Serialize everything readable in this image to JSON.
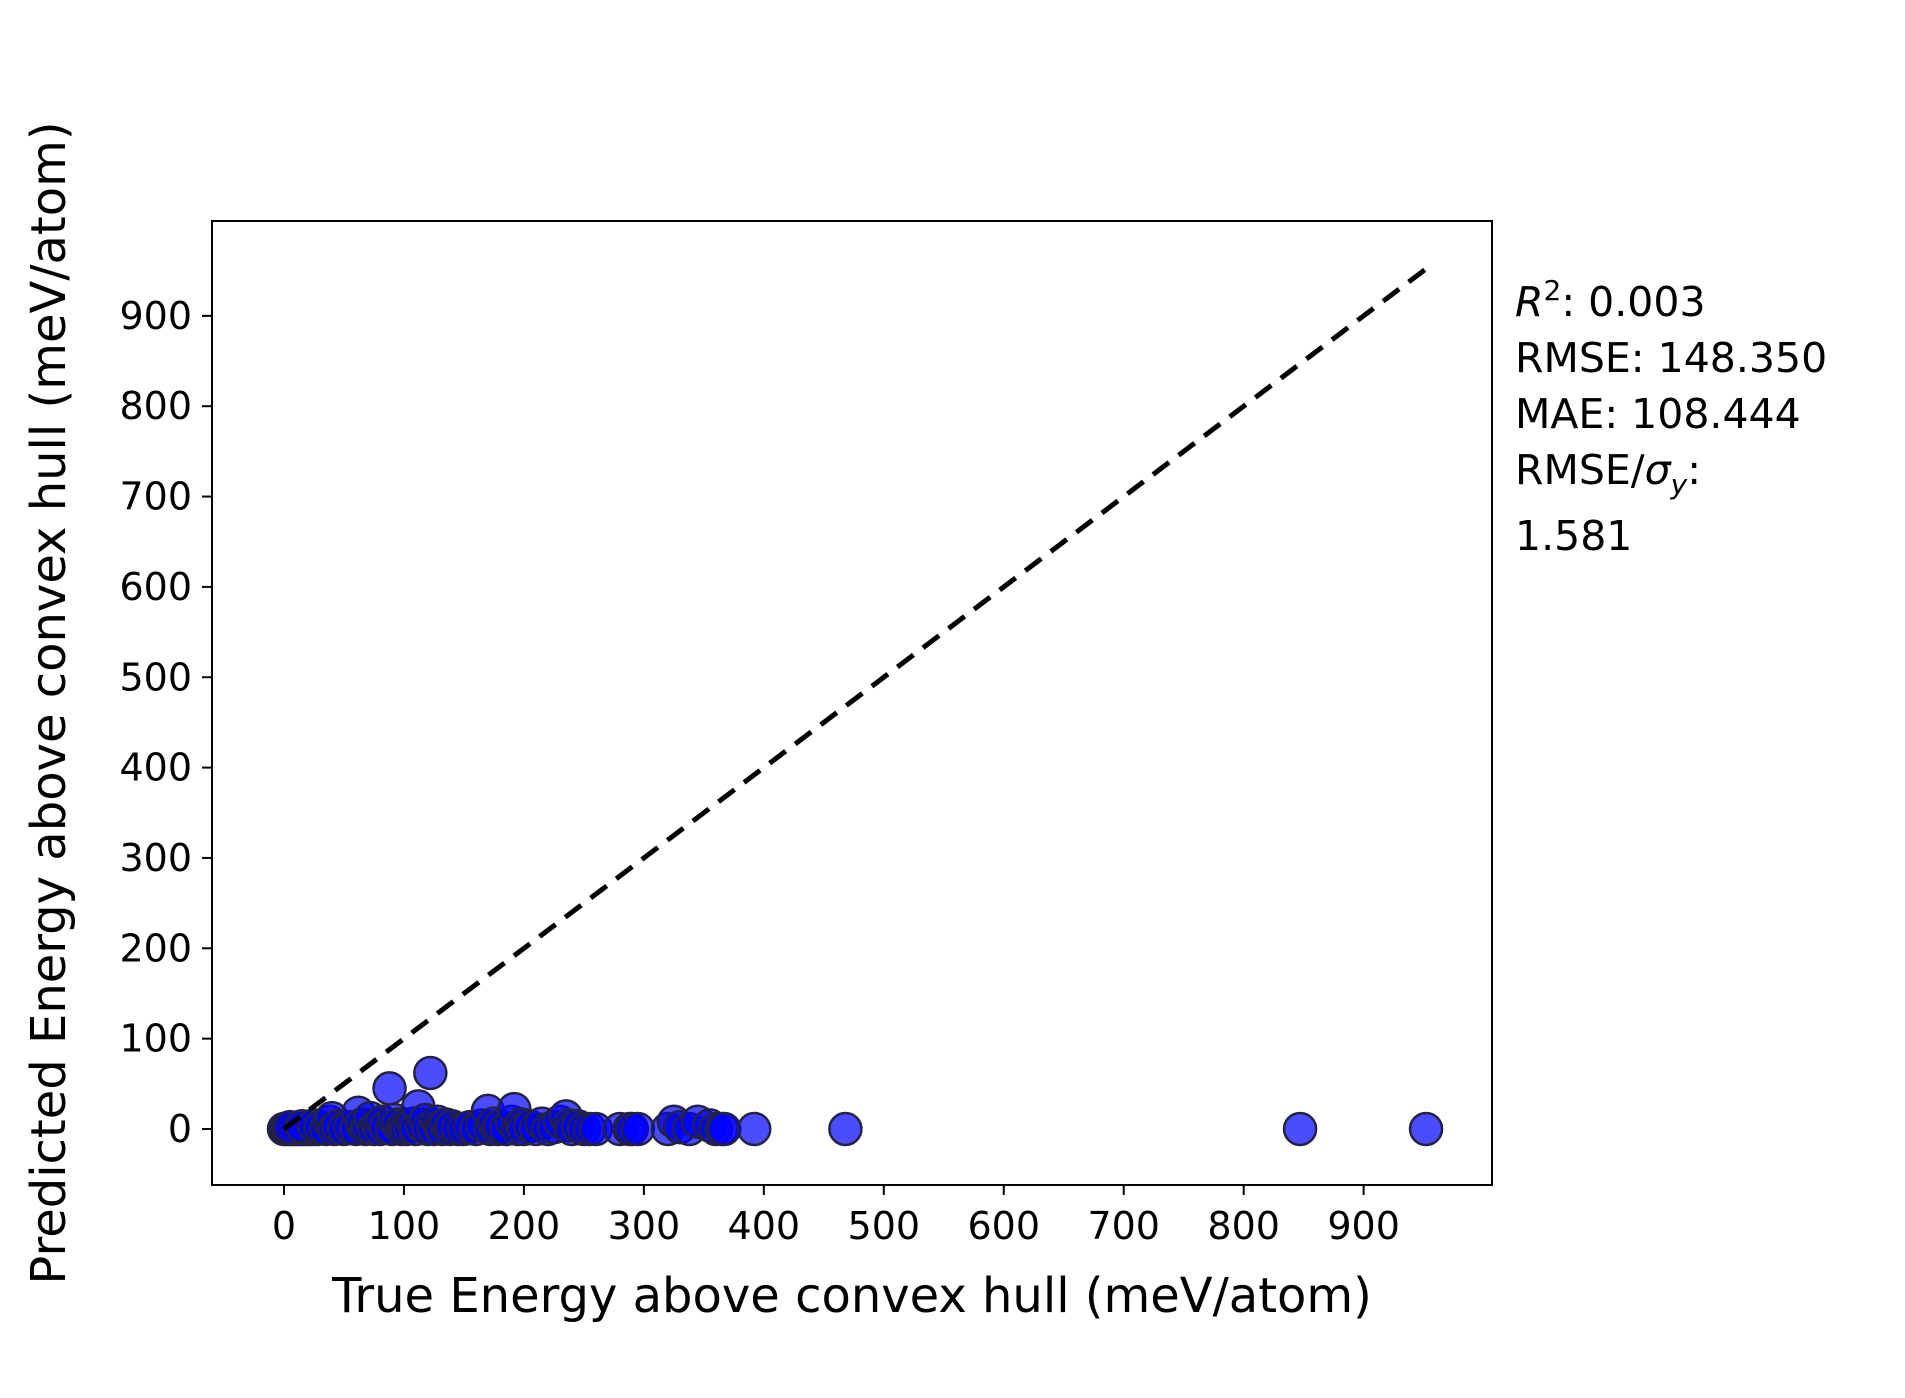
{
  "chart_data": {
    "type": "scatter",
    "xlabel": "True Energy above convex hull (meV/atom)",
    "ylabel": "Predicted Energy above convex hull (meV/atom)",
    "xlim": [
      -60,
      1007
    ],
    "ylim": [
      -62,
      1005
    ],
    "xticks": [
      0,
      100,
      200,
      300,
      400,
      500,
      600,
      700,
      800,
      900
    ],
    "yticks": [
      0,
      100,
      200,
      300,
      400,
      500,
      600,
      700,
      800,
      900
    ],
    "grid": false,
    "marker_color": "#0000ff",
    "marker_edge_color": "#222244",
    "reference_line": {
      "style": "dashed",
      "color": "#000000",
      "from": [
        0,
        0
      ],
      "to": [
        952,
        952
      ]
    },
    "stats": {
      "r2_label": "R",
      "r2_sup": "2",
      "r2_value": ": 0.003",
      "rmse": "RMSE: 148.350",
      "mae": "MAE: 108.444",
      "rmse_sigma_label": "RMSE/",
      "rmse_sigma_symbol": "σ",
      "rmse_sigma_sub": "y",
      "rmse_sigma_colon": ":",
      "rmse_sigma_value": "1.581"
    },
    "series": [
      {
        "points": [
          [
            0,
            0
          ],
          [
            2,
            0
          ],
          [
            4,
            0
          ],
          [
            6,
            0
          ],
          [
            8,
            0
          ],
          [
            10,
            0
          ],
          [
            12,
            0
          ],
          [
            14,
            0
          ],
          [
            16,
            0
          ],
          [
            18,
            0
          ],
          [
            20,
            0
          ],
          [
            22,
            0
          ],
          [
            25,
            0
          ],
          [
            28,
            0
          ],
          [
            5,
            2
          ],
          [
            15,
            3
          ],
          [
            25,
            4
          ],
          [
            30,
            2
          ],
          [
            35,
            0
          ],
          [
            38,
            8
          ],
          [
            40,
            12
          ],
          [
            42,
            0
          ],
          [
            45,
            3
          ],
          [
            50,
            0
          ],
          [
            55,
            2
          ],
          [
            60,
            0
          ],
          [
            62,
            18
          ],
          [
            65,
            5
          ],
          [
            68,
            0
          ],
          [
            70,
            3
          ],
          [
            72,
            12
          ],
          [
            75,
            0
          ],
          [
            78,
            4
          ],
          [
            80,
            0
          ],
          [
            82,
            8
          ],
          [
            85,
            2
          ],
          [
            88,
            45
          ],
          [
            90,
            0
          ],
          [
            92,
            10
          ],
          [
            95,
            5
          ],
          [
            98,
            0
          ],
          [
            100,
            3
          ],
          [
            102,
            0
          ],
          [
            105,
            2
          ],
          [
            108,
            6
          ],
          [
            110,
            0
          ],
          [
            112,
            25
          ],
          [
            115,
            4
          ],
          [
            118,
            10
          ],
          [
            120,
            0
          ],
          [
            122,
            62
          ],
          [
            125,
            0
          ],
          [
            128,
            8
          ],
          [
            130,
            2
          ],
          [
            132,
            0
          ],
          [
            135,
            5
          ],
          [
            138,
            0
          ],
          [
            140,
            3
          ],
          [
            145,
            0
          ],
          [
            150,
            0
          ],
          [
            155,
            2
          ],
          [
            160,
            0
          ],
          [
            165,
            4
          ],
          [
            170,
            20
          ],
          [
            172,
            0
          ],
          [
            175,
            6
          ],
          [
            178,
            0
          ],
          [
            180,
            3
          ],
          [
            185,
            0
          ],
          [
            190,
            8
          ],
          [
            192,
            22
          ],
          [
            195,
            0
          ],
          [
            198,
            5
          ],
          [
            200,
            0
          ],
          [
            205,
            3
          ],
          [
            210,
            0
          ],
          [
            215,
            6
          ],
          [
            220,
            0
          ],
          [
            225,
            2
          ],
          [
            230,
            8
          ],
          [
            235,
            14
          ],
          [
            238,
            4
          ],
          [
            240,
            0
          ],
          [
            245,
            3
          ],
          [
            250,
            0
          ],
          [
            255,
            0
          ],
          [
            260,
            0
          ],
          [
            280,
            0
          ],
          [
            288,
            0
          ],
          [
            290,
            0
          ],
          [
            295,
            0
          ],
          [
            320,
            0
          ],
          [
            325,
            8
          ],
          [
            330,
            2
          ],
          [
            338,
            0
          ],
          [
            345,
            8
          ],
          [
            355,
            4
          ],
          [
            360,
            0
          ],
          [
            365,
            0
          ],
          [
            367,
            0
          ],
          [
            392,
            0
          ],
          [
            468,
            0
          ],
          [
            847,
            0
          ],
          [
            952,
            0
          ]
        ]
      }
    ]
  }
}
